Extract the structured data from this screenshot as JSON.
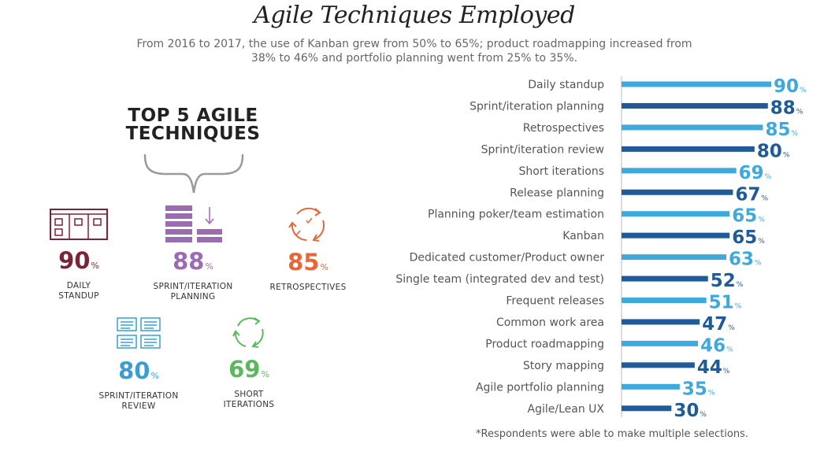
{
  "title": "Agile Techniques Employed",
  "subtitle": "From 2016 to 2017, the use of Kanban grew from 50% to 65%; product roadmapping increased from 38% to 46% and portfolio planning went from 25% to 35%.",
  "top5": {
    "heading_line1": "TOP 5 AGILE",
    "heading_line2": "TECHNIQUES",
    "items": [
      {
        "value": "90",
        "unit": "%",
        "label_line1": "DAILY",
        "label_line2": "STANDUP",
        "color": "#7a2438",
        "icon": "standup-board-icon"
      },
      {
        "value": "88",
        "unit": "%",
        "label_line1": "SPRINT/ITERATION",
        "label_line2": "PLANNING",
        "color": "#9b6bb3",
        "icon": "planning-stack-icon"
      },
      {
        "value": "85",
        "unit": "%",
        "label_line1": "RETROSPECTIVES",
        "label_line2": "",
        "color": "#e5673a",
        "icon": "retrospective-cycle-icon"
      },
      {
        "value": "80",
        "unit": "%",
        "label_line1": "SPRINT/ITERATION",
        "label_line2": "REVIEW",
        "color": "#3a9fd0",
        "icon": "review-documents-icon"
      },
      {
        "value": "69",
        "unit": "%",
        "label_line1": "SHORT",
        "label_line2": "ITERATIONS",
        "color": "#5cb85c",
        "icon": "short-iterations-cycle-icon"
      }
    ]
  },
  "chart_data": {
    "type": "bar",
    "orientation": "horizontal",
    "categories": [
      "Daily standup",
      "Sprint/iteration planning",
      "Retrospectives",
      "Sprint/iteration review",
      "Short iterations",
      "Release planning",
      "Planning poker/team estimation",
      "Kanban",
      "Dedicated customer/Product owner",
      "Single team (integrated dev and test)",
      "Frequent releases",
      "Common work area",
      "Product roadmapping",
      "Story mapping",
      "Agile portfolio planning",
      "Agile/Lean UX"
    ],
    "values": [
      90,
      88,
      85,
      80,
      69,
      67,
      65,
      65,
      63,
      52,
      51,
      47,
      46,
      44,
      35,
      30
    ],
    "value_unit": "%",
    "xlim": [
      0,
      100
    ],
    "colors": {
      "light": "#3fa9dc",
      "dark": "#1f5a99"
    },
    "grid": false,
    "legend": "none",
    "title": "",
    "xlabel": "",
    "ylabel": ""
  },
  "footnote": "*Respondents were able to make multiple selections."
}
